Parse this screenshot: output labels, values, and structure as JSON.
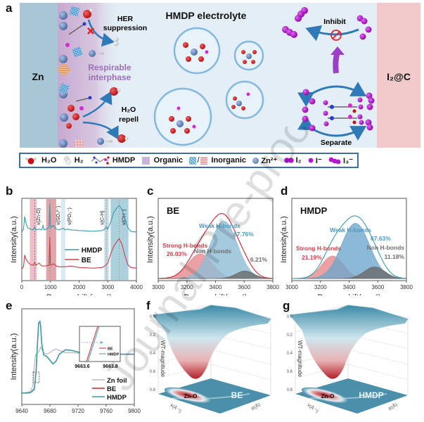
{
  "panel_labels": {
    "a": "a",
    "b": "b",
    "c": "c",
    "d": "d",
    "e": "e",
    "f": "f",
    "g": "g"
  },
  "schematic": {
    "left_electrode": "Zn",
    "right_electrode": "I₂@C",
    "title": "HMDP electrolyte",
    "her_line1": "HER",
    "her_line2": "suppression",
    "respirable_line1": "Respirable",
    "respirable_line2": "interphase",
    "h2o_repell_line1": "H₂O",
    "h2o_repell_line2": "repell",
    "inhibit": "Inhibit",
    "separate": "Separate"
  },
  "legend": {
    "items": [
      {
        "icon": "water-molecule-icon",
        "label": "H₂O"
      },
      {
        "icon": "hydrogen-molecule-icon",
        "label": "H₂"
      },
      {
        "icon": "hmdp-molecule-icon",
        "label": "HMDP"
      },
      {
        "icon": "organic-swatch-icon",
        "label": "Organic"
      },
      {
        "icon": "inorganic-swatch-icon",
        "label": "Inorganic"
      },
      {
        "icon": "zinc-ion-icon",
        "label": "Zn²⁺"
      },
      {
        "icon": "iodine-icon",
        "label": "I₂"
      },
      {
        "icon": "iodide-icon",
        "label": "I⁻"
      },
      {
        "icon": "triiodide-icon",
        "label": "I₃⁻"
      }
    ],
    "colors": {
      "organic": "#c9b3d6",
      "inorganic_blue": "#4a90c8",
      "inorganic_red": "#d9868a",
      "zn": "#6f8fbf",
      "iodine": "#b515d0"
    }
  },
  "chart_data": [
    {
      "id": "b",
      "type": "line",
      "title": "",
      "xlabel": "Raman shift (cm⁻¹)",
      "ylabel": "Intensity(a.u.)",
      "xlim": [
        0,
        4000
      ],
      "xticks": [
        "0",
        "1000",
        "2000",
        "3000",
        "4000"
      ],
      "legend": [
        "HMDP",
        "BE"
      ],
      "legend_position": "center",
      "colors": {
        "HMDP": "#3c9aaa",
        "BE": "#c9404a"
      },
      "bands": [
        {
          "label": "ν(Zn-O)",
          "from": 280,
          "to": 520,
          "color": "#e8a9ad"
        },
        {
          "label": "ν(SO₄²⁻)",
          "from": 850,
          "to": 1200,
          "color": "#d9878d"
        },
        {
          "label": "ν(PO₃⁻)",
          "from": 1370,
          "to": 1520,
          "color": "#cfe3ee"
        },
        {
          "label": "ν(C-H)",
          "from": 2880,
          "to": 3030,
          "color": "#a9cfe0"
        },
        {
          "label": "ν(OH⁻)",
          "from": 3100,
          "to": 3720,
          "color": "#8fc1d4"
        }
      ],
      "series": [
        {
          "name": "HMDP",
          "x": [
            0,
            60,
            100,
            140,
            200,
            300,
            400,
            450,
            500,
            600,
            700,
            740,
            780,
            850,
            950,
            980,
            1000,
            1030,
            1100,
            1200,
            1300,
            1450,
            1500,
            1600,
            1700,
            2000,
            2500,
            2800,
            2900,
            2950,
            3000,
            3100,
            3200,
            3300,
            3400,
            3500,
            3600,
            3700,
            3800,
            4000
          ],
          "y": [
            0.62,
            0.66,
            0.83,
            0.75,
            0.68,
            0.66,
            0.65,
            0.69,
            0.65,
            0.66,
            0.65,
            0.71,
            0.65,
            0.66,
            0.68,
            1.0,
            0.72,
            0.68,
            0.71,
            0.66,
            0.65,
            0.67,
            0.65,
            0.66,
            0.65,
            0.64,
            0.63,
            0.64,
            0.66,
            0.69,
            0.66,
            0.75,
            0.88,
            0.94,
            0.98,
            0.92,
            0.8,
            0.68,
            0.63,
            0.62
          ]
        },
        {
          "name": "BE",
          "x": [
            0,
            60,
            100,
            140,
            200,
            300,
            400,
            450,
            500,
            600,
            700,
            800,
            950,
            980,
            1000,
            1030,
            1100,
            1200,
            1300,
            1500,
            1700,
            2000,
            2500,
            2800,
            2900,
            3000,
            3100,
            3200,
            3300,
            3400,
            3500,
            3600,
            3700,
            3800,
            4000
          ],
          "y": [
            0.12,
            0.15,
            0.31,
            0.26,
            0.22,
            0.18,
            0.17,
            0.21,
            0.17,
            0.2,
            0.16,
            0.16,
            0.17,
            0.55,
            0.18,
            0.17,
            0.19,
            0.16,
            0.15,
            0.15,
            0.16,
            0.14,
            0.13,
            0.14,
            0.16,
            0.2,
            0.32,
            0.42,
            0.48,
            0.53,
            0.45,
            0.3,
            0.18,
            0.14,
            0.13
          ]
        }
      ]
    },
    {
      "id": "c",
      "type": "area",
      "title": "BE",
      "xlabel": "Raman shift(cm⁻¹)",
      "ylabel": "Intensity(a.u.)",
      "xlim": [
        2900,
        3800
      ],
      "xticks": [
        "3000",
        "3200",
        "3400",
        "3600",
        "3800"
      ],
      "envelope_color": "#d0242f",
      "series": [
        {
          "name": "Strong H-bonds",
          "percent": "26.03%",
          "center": 3230,
          "width": 95,
          "height": 0.36,
          "color": "#e58a8c"
        },
        {
          "name": "Weak H-bonds",
          "percent": "67.76%",
          "center": 3415,
          "width": 105,
          "height": 0.84,
          "color": "#8fbdd4"
        },
        {
          "name": "Non H-bonds",
          "percent": "6.21%",
          "center": 3580,
          "width": 70,
          "height": 0.11,
          "color": "#6a6a6a"
        }
      ]
    },
    {
      "id": "d",
      "type": "area",
      "title": "HMDP",
      "xlabel": "Raman shift(cm⁻¹)",
      "ylabel": "Intensity(a.u.)",
      "xlim": [
        2900,
        3800
      ],
      "xticks": [
        "3000",
        "3200",
        "3400",
        "3600",
        "3800"
      ],
      "envelope_color": "#3c9aaa",
      "series": [
        {
          "name": "Strong H-bonds",
          "percent": "21.19%",
          "center": 3220,
          "width": 85,
          "height": 0.33,
          "color": "#e58a8c"
        },
        {
          "name": "Weak H-bonds",
          "percent": "67.63%",
          "center": 3400,
          "width": 110,
          "height": 0.81,
          "color": "#6fa8cc"
        },
        {
          "name": "Non H-bonds",
          "percent": "11.18%",
          "center": 3550,
          "width": 80,
          "height": 0.17,
          "color": "#6a6a6a"
        }
      ]
    },
    {
      "id": "e",
      "type": "line",
      "title": "",
      "xlabel": "Energy(eV)",
      "ylabel": "Intensity(a.u.)",
      "xlim": [
        9640,
        9820
      ],
      "xticks": [
        "9640",
        "9680",
        "9720",
        "9760",
        "9800"
      ],
      "legend": [
        "Zn foil",
        "BE",
        "HMDP"
      ],
      "legend_position": "bottom-right",
      "colors": {
        "Zn foil": "#b8b8b8",
        "BE": "#d0242f",
        "HMDP": "#3c9aaa"
      },
      "inset": {
        "xticks": [
          "9663.6",
          "9663.8"
        ],
        "legend": [
          "BE",
          "HMDP"
        ]
      },
      "series": [
        {
          "name": "Zn foil",
          "x": [
            9640,
            9650,
            9655,
            9658,
            9660,
            9662,
            9665,
            9668,
            9670,
            9675,
            9680,
            9685,
            9690,
            9695,
            9700,
            9710,
            9720,
            9740,
            9760,
            9780,
            9800,
            9820
          ],
          "y": [
            0.04,
            0.05,
            0.07,
            0.15,
            0.4,
            0.55,
            0.58,
            0.6,
            0.66,
            0.58,
            0.56,
            0.58,
            0.61,
            0.63,
            0.61,
            0.58,
            0.58,
            0.57,
            0.57,
            0.56,
            0.56,
            0.56
          ]
        },
        {
          "name": "BE",
          "x": [
            9640,
            9650,
            9655,
            9660,
            9663,
            9665,
            9667,
            9669,
            9670,
            9672,
            9675,
            9680,
            9685,
            9690,
            9695,
            9700,
            9710,
            9720,
            9740,
            9760,
            9780,
            9800,
            9820
          ],
          "y": [
            0.04,
            0.04,
            0.05,
            0.1,
            0.35,
            0.7,
            0.98,
            1.0,
            0.95,
            0.7,
            0.55,
            0.53,
            0.48,
            0.43,
            0.47,
            0.56,
            0.62,
            0.61,
            0.57,
            0.55,
            0.56,
            0.56,
            0.56
          ]
        },
        {
          "name": "HMDP",
          "x": [
            9640,
            9650,
            9655,
            9660,
            9663,
            9665,
            9667,
            9669,
            9670,
            9672,
            9675,
            9680,
            9685,
            9690,
            9695,
            9700,
            9710,
            9720,
            9740,
            9760,
            9780,
            9800,
            9820
          ],
          "y": [
            0.04,
            0.04,
            0.05,
            0.09,
            0.33,
            0.69,
            0.98,
            1.0,
            0.95,
            0.7,
            0.55,
            0.53,
            0.48,
            0.43,
            0.47,
            0.56,
            0.62,
            0.61,
            0.57,
            0.55,
            0.56,
            0.56,
            0.56
          ]
        }
      ]
    },
    {
      "id": "f",
      "type": "heatmap",
      "title": "BE",
      "zlabel": "WT-magnitude",
      "xlabel": "k(Å⁻¹)",
      "ylabel": "R(Å)",
      "zticks": [
        "0.0",
        "0.2",
        "0.4",
        "0.6",
        "0.8"
      ],
      "annotation": "Zn-O"
    },
    {
      "id": "g",
      "type": "heatmap",
      "title": "HMDP",
      "zlabel": "WT-magnitude",
      "xlabel": "k(Å⁻¹)",
      "ylabel": "R(Å)",
      "zticks": [
        "0.0",
        "0.2",
        "0.4",
        "0.6",
        "0.8"
      ],
      "annotation": "Zn-O"
    }
  ],
  "watermark": "Journal Pre-proof"
}
